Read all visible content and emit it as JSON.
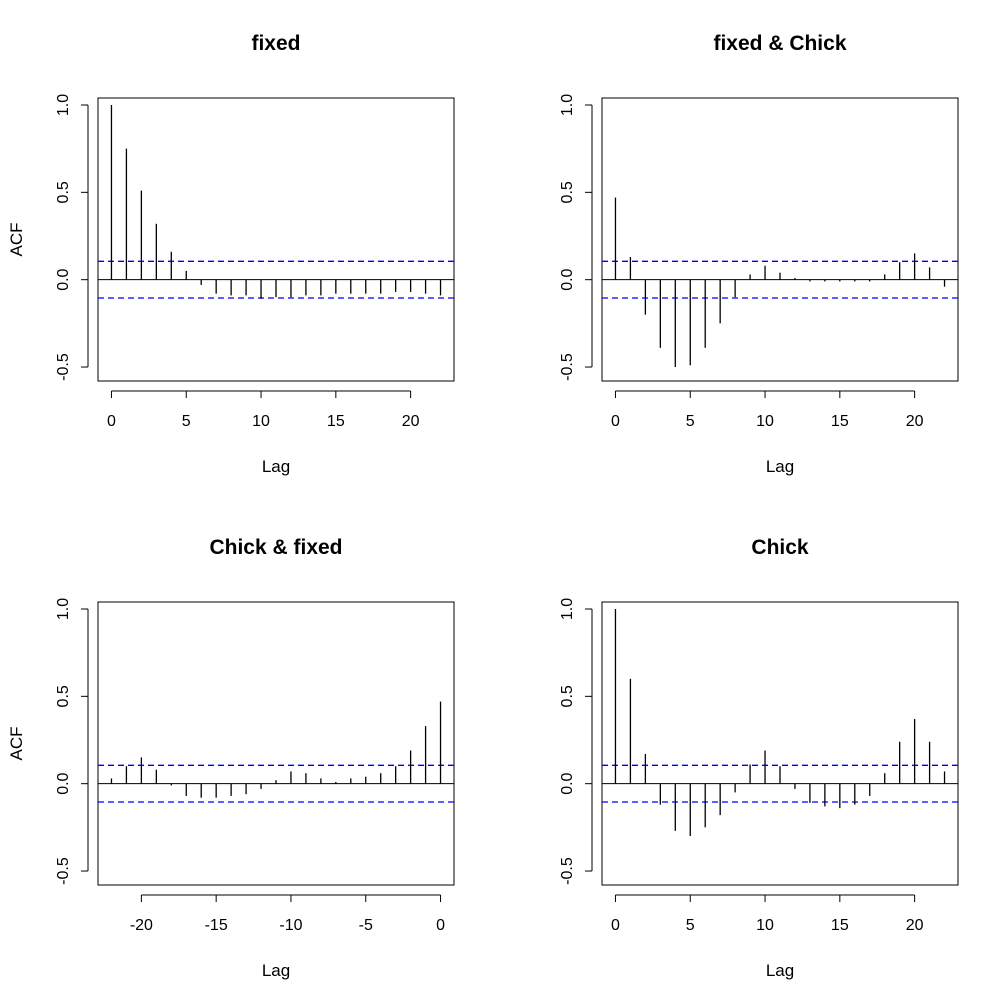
{
  "chart_data": [
    {
      "type": "bar",
      "title": "fixed",
      "xlabel": "Lag",
      "ylabel": "ACF",
      "xlim": [
        -0.9,
        22.9
      ],
      "ylim": [
        -0.58,
        1.04
      ],
      "xticks": [
        {
          "v": 0,
          "label": "0"
        },
        {
          "v": 5,
          "label": "5"
        },
        {
          "v": 10,
          "label": "10"
        },
        {
          "v": 15,
          "label": "15"
        },
        {
          "v": 20,
          "label": "20"
        }
      ],
      "yticks": [
        {
          "v": -0.5,
          "label": "-0.5"
        },
        {
          "v": 0,
          "label": "0.0"
        },
        {
          "v": 0.5,
          "label": "0.5"
        },
        {
          "v": 1,
          "label": "1.0"
        }
      ],
      "ci": [
        0.105,
        -0.105
      ],
      "lags": [
        0,
        1,
        2,
        3,
        4,
        5,
        6,
        7,
        8,
        9,
        10,
        11,
        12,
        13,
        14,
        15,
        16,
        17,
        18,
        19,
        20,
        21,
        22
      ],
      "acf": [
        1.0,
        0.75,
        0.51,
        0.32,
        0.16,
        0.05,
        -0.03,
        -0.08,
        -0.09,
        -0.09,
        -0.11,
        -0.1,
        -0.1,
        -0.09,
        -0.09,
        -0.08,
        -0.08,
        -0.08,
        -0.08,
        -0.07,
        -0.07,
        -0.08,
        -0.09
      ]
    },
    {
      "type": "bar",
      "title": "fixed & Chick",
      "xlabel": "Lag",
      "ylabel": "",
      "xlim": [
        -0.9,
        22.9
      ],
      "ylim": [
        -0.58,
        1.04
      ],
      "xticks": [
        {
          "v": 0,
          "label": "0"
        },
        {
          "v": 5,
          "label": "5"
        },
        {
          "v": 10,
          "label": "10"
        },
        {
          "v": 15,
          "label": "15"
        },
        {
          "v": 20,
          "label": "20"
        }
      ],
      "yticks": [
        {
          "v": -0.5,
          "label": "-0.5"
        },
        {
          "v": 0,
          "label": "0.0"
        },
        {
          "v": 0.5,
          "label": "0.5"
        },
        {
          "v": 1,
          "label": "1.0"
        }
      ],
      "ci": [
        0.105,
        -0.105
      ],
      "lags": [
        0,
        1,
        2,
        3,
        4,
        5,
        6,
        7,
        8,
        9,
        10,
        11,
        12,
        13,
        14,
        15,
        16,
        17,
        18,
        19,
        20,
        21,
        22
      ],
      "acf": [
        0.47,
        0.13,
        -0.2,
        -0.39,
        -0.5,
        -0.49,
        -0.39,
        -0.25,
        -0.1,
        0.03,
        0.08,
        0.04,
        0.01,
        -0.01,
        -0.01,
        -0.01,
        -0.01,
        -0.01,
        0.03,
        0.1,
        0.15,
        0.07,
        -0.04
      ]
    },
    {
      "type": "bar",
      "title": "Chick & fixed",
      "xlabel": "Lag",
      "ylabel": "ACF",
      "xlim": [
        -22.9,
        0.9
      ],
      "ylim": [
        -0.58,
        1.04
      ],
      "xticks": [
        {
          "v": -20,
          "label": "-20"
        },
        {
          "v": -15,
          "label": "-15"
        },
        {
          "v": -10,
          "label": "-10"
        },
        {
          "v": -5,
          "label": "-5"
        },
        {
          "v": 0,
          "label": "0"
        }
      ],
      "yticks": [
        {
          "v": -0.5,
          "label": "-0.5"
        },
        {
          "v": 0,
          "label": "0.0"
        },
        {
          "v": 0.5,
          "label": "0.5"
        },
        {
          "v": 1,
          "label": "1.0"
        }
      ],
      "ci": [
        0.105,
        -0.105
      ],
      "lags": [
        -22,
        -21,
        -20,
        -19,
        -18,
        -17,
        -16,
        -15,
        -14,
        -13,
        -12,
        -11,
        -10,
        -9,
        -8,
        -7,
        -6,
        -5,
        -4,
        -3,
        -2,
        -1,
        0
      ],
      "acf": [
        0.03,
        0.1,
        0.15,
        0.08,
        -0.01,
        -0.07,
        -0.08,
        -0.08,
        -0.07,
        -0.06,
        -0.03,
        0.02,
        0.07,
        0.06,
        0.03,
        0.01,
        0.03,
        0.04,
        0.06,
        0.1,
        0.19,
        0.33,
        0.47
      ]
    },
    {
      "type": "bar",
      "title": "Chick",
      "xlabel": "Lag",
      "ylabel": "",
      "xlim": [
        -0.9,
        22.9
      ],
      "ylim": [
        -0.58,
        1.04
      ],
      "xticks": [
        {
          "v": 0,
          "label": "0"
        },
        {
          "v": 5,
          "label": "5"
        },
        {
          "v": 10,
          "label": "10"
        },
        {
          "v": 15,
          "label": "15"
        },
        {
          "v": 20,
          "label": "20"
        }
      ],
      "yticks": [
        {
          "v": -0.5,
          "label": "-0.5"
        },
        {
          "v": 0,
          "label": "0.0"
        },
        {
          "v": 0.5,
          "label": "0.5"
        },
        {
          "v": 1,
          "label": "1.0"
        }
      ],
      "ci": [
        0.105,
        -0.105
      ],
      "lags": [
        0,
        1,
        2,
        3,
        4,
        5,
        6,
        7,
        8,
        9,
        10,
        11,
        12,
        13,
        14,
        15,
        16,
        17,
        18,
        19,
        20,
        21,
        22
      ],
      "acf": [
        1.0,
        0.6,
        0.17,
        -0.12,
        -0.27,
        -0.3,
        -0.25,
        -0.18,
        -0.05,
        0.11,
        0.19,
        0.1,
        -0.03,
        -0.11,
        -0.13,
        -0.14,
        -0.12,
        -0.07,
        0.06,
        0.24,
        0.37,
        0.24,
        0.07
      ]
    }
  ],
  "colors": {
    "spike": "#000000",
    "ci_line": "#0000ff",
    "axis": "#000000"
  }
}
